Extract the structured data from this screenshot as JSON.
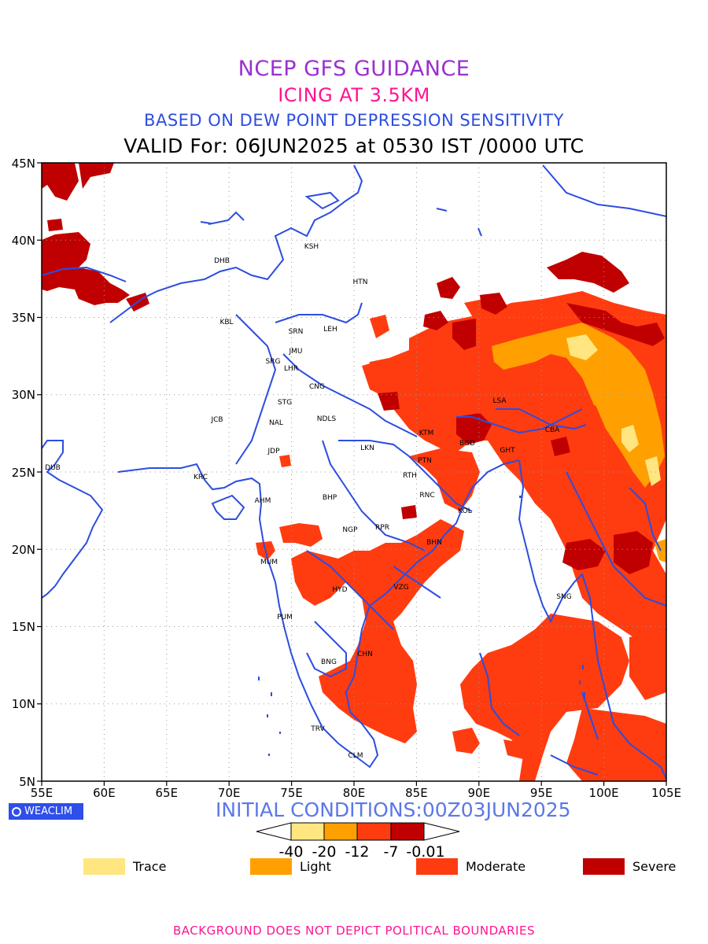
{
  "titles": {
    "line1": "NCEP GFS GUIDANCE",
    "line2": "ICING AT 3.5KM",
    "line3": "BASED ON DEW POINT DEPRESSION SENSITIVITY",
    "line4": "VALID For: 06JUN2025 at 0530 IST /0000 UTC"
  },
  "axes": {
    "lon_labels": [
      "55E",
      "60E",
      "65E",
      "70E",
      "75E",
      "80E",
      "85E",
      "90E",
      "95E",
      "100E",
      "105E"
    ],
    "lat_labels": [
      "45N",
      "40N",
      "35N",
      "30N",
      "25N",
      "20N",
      "15N",
      "10N",
      "5N"
    ]
  },
  "stations": [
    {
      "code": "KSH"
    },
    {
      "code": "DHB"
    },
    {
      "code": "HTN"
    },
    {
      "code": "KBL"
    },
    {
      "code": "SRN"
    },
    {
      "code": "LEH"
    },
    {
      "code": "JMU"
    },
    {
      "code": "SRG"
    },
    {
      "code": "LHR"
    },
    {
      "code": "CNG"
    },
    {
      "code": "STG"
    },
    {
      "code": "JCB"
    },
    {
      "code": "NAL"
    },
    {
      "code": "NDLS"
    },
    {
      "code": "LSA"
    },
    {
      "code": "JDP"
    },
    {
      "code": "LKN"
    },
    {
      "code": "KTM"
    },
    {
      "code": "BGD"
    },
    {
      "code": "CBA"
    },
    {
      "code": "GHT"
    },
    {
      "code": "DUB"
    },
    {
      "code": "KRC"
    },
    {
      "code": "PTN"
    },
    {
      "code": "RTH"
    },
    {
      "code": "AHM"
    },
    {
      "code": "BHP"
    },
    {
      "code": "RNC"
    },
    {
      "code": "KOL"
    },
    {
      "code": "NGP"
    },
    {
      "code": "RPR"
    },
    {
      "code": "BHN"
    },
    {
      "code": "MUM"
    },
    {
      "code": "HYD"
    },
    {
      "code": "VZG"
    },
    {
      "code": "SNG"
    },
    {
      "code": "PUM"
    },
    {
      "code": "CHN"
    },
    {
      "code": "BNG"
    },
    {
      "code": "TRV"
    },
    {
      "code": "CLM"
    }
  ],
  "branding": {
    "logo_text": "WEACLIM"
  },
  "initial_conditions": "INITIAL CONDITIONS:00Z03JUN2025",
  "colorbar": {
    "labels": [
      "-40",
      "-20",
      "-12",
      "-7",
      "-0.01"
    ],
    "colors": [
      "#ffe680",
      "#ffa000",
      "#ff3c10",
      "#c00000"
    ]
  },
  "legend": [
    {
      "label": "Trace",
      "color": "#ffe680"
    },
    {
      "label": "Light",
      "color": "#ffa000"
    },
    {
      "label": "Moderate",
      "color": "#ff3c10"
    },
    {
      "label": "Severe",
      "color": "#c00000"
    }
  ],
  "footer": "BACKGROUND DOES NOT DEPICT POLITICAL BOUNDARIES",
  "colors": {
    "coastline": "#2c4de0",
    "moderate": "#ff3c10",
    "severe": "#c00000",
    "light": "#ffa000",
    "trace": "#ffe680"
  }
}
